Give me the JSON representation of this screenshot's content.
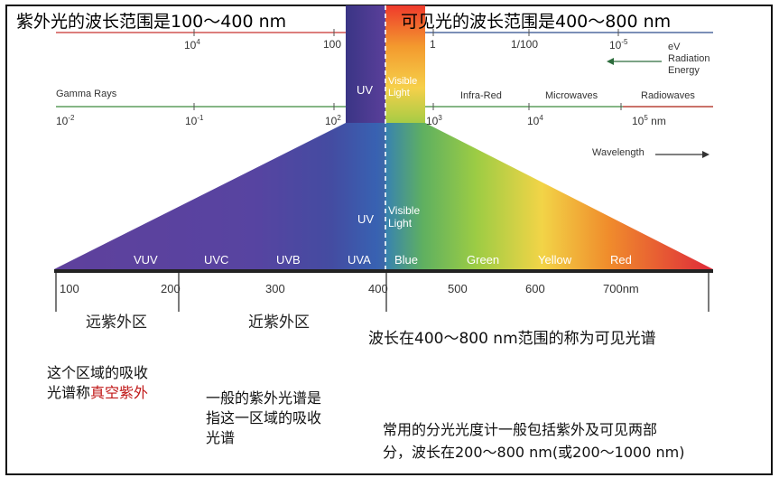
{
  "title_uv": "紫外光的波长范围是100～400 nm",
  "title_vis": "可见光的波长范围是400～800 nm",
  "energy_scale": {
    "ticks": [
      {
        "base": "10",
        "exp": "4"
      },
      {
        "base": "100",
        "exp": ""
      },
      {
        "base": "1",
        "exp": ""
      },
      {
        "base": "1/100",
        "exp": ""
      },
      {
        "base": "10",
        "exp": "-5"
      }
    ],
    "label_lines": [
      "eV",
      "Radiation",
      "Energy"
    ]
  },
  "spectrum_bands": {
    "gamma": "Gamma Rays",
    "uv": "UV",
    "visible_line1": "Visible",
    "visible_line2": "Light",
    "infrared": "Infra-Red",
    "microwaves": "Microwaves",
    "radiowaves": "Radiowaves"
  },
  "wavelength_scale": {
    "ticks": [
      {
        "base": "10",
        "exp": "-2",
        "suffix": ""
      },
      {
        "base": "10",
        "exp": "-1",
        "suffix": ""
      },
      {
        "base": "10",
        "exp": "2",
        "suffix": ""
      },
      {
        "base": "10",
        "exp": "3",
        "suffix": ""
      },
      {
        "base": "10",
        "exp": "4",
        "suffix": ""
      },
      {
        "base": "10",
        "exp": "5",
        "suffix": " nm"
      }
    ],
    "label": "Wavelength"
  },
  "fan": {
    "uv": "UV",
    "visible_line1": "Visible",
    "visible_line2": "Light"
  },
  "bottom_bands": [
    "VUV",
    "UVC",
    "UVB",
    "UVA",
    "Blue",
    "Green",
    "Yellow",
    "Red"
  ],
  "bottom_ticks": [
    "100",
    "200",
    "300",
    "400",
    "500",
    "600",
    "700nm"
  ],
  "regions": {
    "far_uv": "远紫外区",
    "near_uv": "近紫外区",
    "visible_desc": "波长在400～800 nm范围的称为可见光谱"
  },
  "notes": {
    "vacuum_line1": "这个区域的吸收",
    "vacuum_line2_prefix": "光谱称",
    "vacuum_line2_red": "真空紫外",
    "general_line1": "一般的紫外光谱是",
    "general_line2": "指这一区域的吸收",
    "general_line3": "光谱",
    "spectro_line1": "常用的分光光度计一般包括紫外及可见两部",
    "spectro_line2": "分，波长在200～800 nm(或200～1000 nm)"
  },
  "colors": {
    "uv_dark": "#3b3b8f",
    "uv_purple": "#6a3fa0",
    "violet": "#7b4fa8",
    "blue": "#3f7fc5",
    "green": "#8cc640",
    "yellow": "#f4d03f",
    "orange": "#f08a24",
    "red": "#e0262a",
    "axis_red": "#c8302e",
    "axis_green": "#3c8a3c",
    "axis_blue": "#2c4c8c"
  }
}
